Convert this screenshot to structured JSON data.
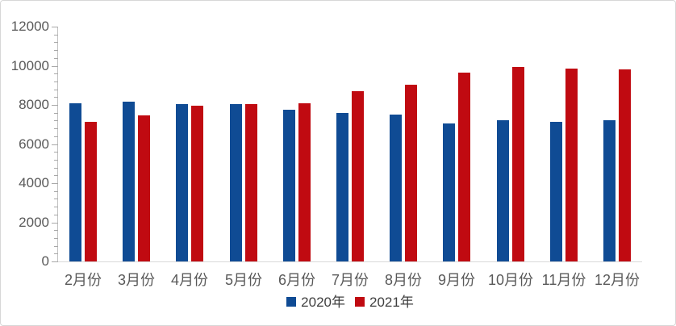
{
  "frame": {
    "background": "#ffffff",
    "border_color": "#d7d7d7"
  },
  "axis_style": {
    "axis_line_color": "#c2c2c2",
    "tick_color": "#a8a8a8",
    "baseline_color": "#d9d9d9",
    "label_color": "#595959",
    "legend_text_color": "#3f3f3f"
  },
  "chart_data": {
    "type": "bar",
    "title": "",
    "xlabel": "",
    "ylabel": "",
    "categories": [
      "2月份",
      "3月份",
      "4月份",
      "5月份",
      "6月份",
      "7月份",
      "8月份",
      "9月份",
      "10月份",
      "11月份",
      "12月份"
    ],
    "series": [
      {
        "name": "2020年",
        "color": "#0f4b94",
        "values": [
          8100,
          8150,
          8050,
          8050,
          7750,
          7600,
          7500,
          7050,
          7200,
          7150,
          7200
        ]
      },
      {
        "name": "2021年",
        "color": "#c00a11",
        "values": [
          7150,
          7450,
          7950,
          8050,
          8100,
          8700,
          9050,
          9650,
          9950,
          9850,
          9800
        ]
      }
    ],
    "ylim": [
      0,
      12000
    ],
    "y_major_ticks": [
      0,
      2000,
      4000,
      6000,
      8000,
      10000,
      12000
    ],
    "y_minor_unit": 400,
    "grid": false,
    "legend_position": "bottom-center"
  }
}
